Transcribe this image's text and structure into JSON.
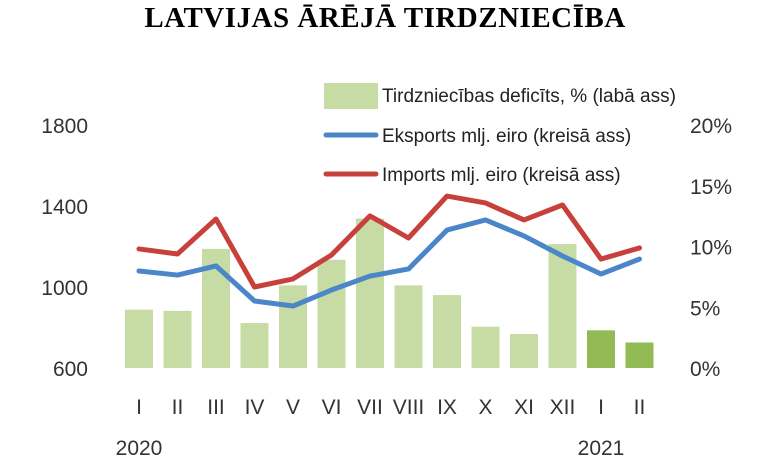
{
  "chart_data": {
    "type": "bar+line",
    "title": "LATVIJAS ĀRĒJĀ TIRDZNIECĪBA",
    "categories": [
      "I",
      "II",
      "III",
      "IV",
      "V",
      "VI",
      "VII",
      "VIII",
      "IX",
      "X",
      "XI",
      "XII",
      "I",
      "II"
    ],
    "year_labels": [
      {
        "label": "2020",
        "index": 0
      },
      {
        "label": "2021",
        "index": 12
      }
    ],
    "left_axis": {
      "ylim": [
        600,
        1800
      ],
      "ticks": [
        "600",
        "1000",
        "1400",
        "1800"
      ]
    },
    "right_axis": {
      "ylim": [
        0,
        20
      ],
      "ticks": [
        "0%",
        "5%",
        "10%",
        "15%",
        "20%"
      ]
    },
    "series": [
      {
        "name": "Tirdzniecības deficīts, % (labā ass)",
        "type": "bar",
        "axis": "right",
        "color": "#c6dca4",
        "highlight_color": "#93bb55",
        "highlight_indices": [
          12,
          13
        ],
        "values": [
          4.8,
          4.7,
          9.8,
          3.7,
          6.8,
          8.9,
          12.3,
          6.8,
          6.0,
          3.4,
          2.8,
          10.2,
          3.1,
          2.1
        ]
      },
      {
        "name": "Eksports mlj. eiro (kreisā ass)",
        "type": "line",
        "axis": "left",
        "color": "#4a86c8",
        "values": [
          1079,
          1059,
          1104,
          931,
          906,
          985,
          1054,
          1089,
          1281,
          1331,
          1252,
          1153,
          1064,
          1138
        ]
      },
      {
        "name": "Imports mlj. eiro (kreisā ass)",
        "type": "line",
        "axis": "left",
        "color": "#c8403c",
        "values": [
          1188,
          1163,
          1336,
          1000,
          1040,
          1158,
          1351,
          1242,
          1449,
          1415,
          1331,
          1405,
          1138,
          1193
        ]
      }
    ],
    "legend_position": "top-right",
    "grid": false
  }
}
